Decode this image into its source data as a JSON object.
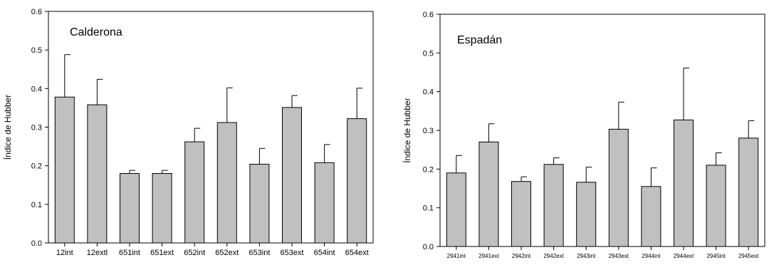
{
  "chart_data": [
    {
      "type": "bar",
      "title": "Calderona",
      "xlabel": "",
      "ylabel": "Índice de Hubber",
      "ylim": [
        0,
        0.6
      ],
      "yticks": [
        "0.0",
        "0.1",
        "0.2",
        "0.3",
        "0.4",
        "0.5",
        "0.6"
      ],
      "grid": false,
      "categories": [
        "12int",
        "12extl",
        "651int",
        "651ext",
        "652int",
        "652ext",
        "653int",
        "653ext",
        "654int",
        "654ext"
      ],
      "values": [
        0.378,
        0.358,
        0.18,
        0.18,
        0.262,
        0.312,
        0.204,
        0.351,
        0.208,
        0.322
      ],
      "error_upper": [
        0.11,
        0.066,
        0.008,
        0.008,
        0.035,
        0.09,
        0.041,
        0.031,
        0.047,
        0.079
      ],
      "bar_color": "#c0c0c0"
    },
    {
      "type": "bar",
      "title": "Espadán",
      "xlabel": "",
      "ylabel": "Índice de Hubber",
      "ylim": [
        0,
        0.6
      ],
      "yticks": [
        "0.0",
        "0.1",
        "0.2",
        "0.3",
        "0.4",
        "0.5",
        "0.6"
      ],
      "grid": false,
      "categories": [
        "2941int",
        "2941ext",
        "2942int",
        "2942ext",
        "2943int",
        "2943ext",
        "2944int",
        "2944ext",
        "2945int",
        "2945ext"
      ],
      "values": [
        0.19,
        0.27,
        0.168,
        0.212,
        0.166,
        0.303,
        0.155,
        0.327,
        0.21,
        0.28
      ],
      "error_upper": [
        0.045,
        0.047,
        0.012,
        0.017,
        0.039,
        0.07,
        0.048,
        0.134,
        0.032,
        0.045
      ],
      "bar_color": "#c0c0c0"
    }
  ]
}
